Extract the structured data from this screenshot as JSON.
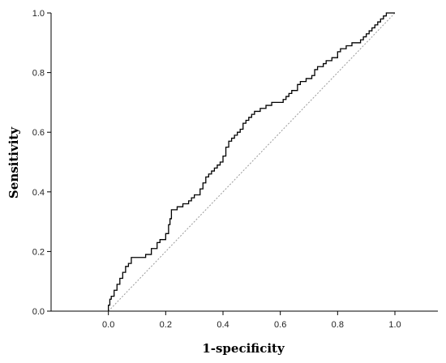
{
  "chart_data": {
    "type": "line",
    "title": "",
    "xlabel": "1-specificity",
    "ylabel": "Sensitivity",
    "xlim": [
      -0.2,
      1.15
    ],
    "ylim": [
      0,
      1.0
    ],
    "x_ticks": [
      "0.0",
      "0.2",
      "0.4",
      "0.6",
      "0.8",
      "1.0"
    ],
    "y_ticks": [
      "0.0",
      "0.2",
      "0.4",
      "0.6",
      "0.8",
      "1.0"
    ],
    "grid": false,
    "legend": "none",
    "reference_line": {
      "from": [
        0,
        0
      ],
      "to": [
        1,
        1
      ],
      "style": "dotted",
      "color": "#999999"
    },
    "series": [
      {
        "color": "#000000",
        "points": [
          [
            0.0,
            0.0
          ],
          [
            0.0,
            0.02
          ],
          [
            0.005,
            0.02
          ],
          [
            0.005,
            0.04
          ],
          [
            0.01,
            0.04
          ],
          [
            0.01,
            0.05
          ],
          [
            0.02,
            0.05
          ],
          [
            0.02,
            0.07
          ],
          [
            0.03,
            0.07
          ],
          [
            0.03,
            0.09
          ],
          [
            0.04,
            0.09
          ],
          [
            0.04,
            0.11
          ],
          [
            0.05,
            0.11
          ],
          [
            0.05,
            0.13
          ],
          [
            0.06,
            0.13
          ],
          [
            0.06,
            0.15
          ],
          [
            0.07,
            0.15
          ],
          [
            0.07,
            0.16
          ],
          [
            0.08,
            0.16
          ],
          [
            0.08,
            0.18
          ],
          [
            0.13,
            0.18
          ],
          [
            0.13,
            0.19
          ],
          [
            0.15,
            0.19
          ],
          [
            0.15,
            0.21
          ],
          [
            0.17,
            0.21
          ],
          [
            0.17,
            0.23
          ],
          [
            0.18,
            0.23
          ],
          [
            0.18,
            0.24
          ],
          [
            0.2,
            0.24
          ],
          [
            0.2,
            0.26
          ],
          [
            0.21,
            0.26
          ],
          [
            0.21,
            0.29
          ],
          [
            0.215,
            0.29
          ],
          [
            0.215,
            0.31
          ],
          [
            0.22,
            0.31
          ],
          [
            0.22,
            0.34
          ],
          [
            0.24,
            0.34
          ],
          [
            0.24,
            0.35
          ],
          [
            0.26,
            0.35
          ],
          [
            0.26,
            0.36
          ],
          [
            0.28,
            0.36
          ],
          [
            0.28,
            0.37
          ],
          [
            0.29,
            0.37
          ],
          [
            0.29,
            0.38
          ],
          [
            0.3,
            0.38
          ],
          [
            0.3,
            0.39
          ],
          [
            0.32,
            0.39
          ],
          [
            0.32,
            0.41
          ],
          [
            0.33,
            0.41
          ],
          [
            0.33,
            0.43
          ],
          [
            0.34,
            0.43
          ],
          [
            0.34,
            0.45
          ],
          [
            0.35,
            0.45
          ],
          [
            0.35,
            0.46
          ],
          [
            0.36,
            0.46
          ],
          [
            0.36,
            0.47
          ],
          [
            0.37,
            0.47
          ],
          [
            0.37,
            0.48
          ],
          [
            0.38,
            0.48
          ],
          [
            0.38,
            0.49
          ],
          [
            0.39,
            0.49
          ],
          [
            0.39,
            0.5
          ],
          [
            0.4,
            0.5
          ],
          [
            0.4,
            0.52
          ],
          [
            0.41,
            0.52
          ],
          [
            0.41,
            0.55
          ],
          [
            0.42,
            0.55
          ],
          [
            0.42,
            0.57
          ],
          [
            0.43,
            0.57
          ],
          [
            0.43,
            0.58
          ],
          [
            0.44,
            0.58
          ],
          [
            0.44,
            0.59
          ],
          [
            0.45,
            0.59
          ],
          [
            0.45,
            0.6
          ],
          [
            0.46,
            0.6
          ],
          [
            0.46,
            0.61
          ],
          [
            0.47,
            0.61
          ],
          [
            0.47,
            0.63
          ],
          [
            0.48,
            0.63
          ],
          [
            0.48,
            0.64
          ],
          [
            0.49,
            0.64
          ],
          [
            0.49,
            0.65
          ],
          [
            0.5,
            0.65
          ],
          [
            0.5,
            0.66
          ],
          [
            0.51,
            0.66
          ],
          [
            0.51,
            0.67
          ],
          [
            0.53,
            0.67
          ],
          [
            0.53,
            0.68
          ],
          [
            0.55,
            0.68
          ],
          [
            0.55,
            0.69
          ],
          [
            0.57,
            0.69
          ],
          [
            0.57,
            0.7
          ],
          [
            0.61,
            0.7
          ],
          [
            0.61,
            0.71
          ],
          [
            0.62,
            0.71
          ],
          [
            0.62,
            0.72
          ],
          [
            0.63,
            0.72
          ],
          [
            0.63,
            0.73
          ],
          [
            0.64,
            0.73
          ],
          [
            0.64,
            0.74
          ],
          [
            0.66,
            0.74
          ],
          [
            0.66,
            0.76
          ],
          [
            0.67,
            0.76
          ],
          [
            0.67,
            0.77
          ],
          [
            0.69,
            0.77
          ],
          [
            0.69,
            0.78
          ],
          [
            0.71,
            0.78
          ],
          [
            0.71,
            0.79
          ],
          [
            0.72,
            0.79
          ],
          [
            0.72,
            0.81
          ],
          [
            0.73,
            0.81
          ],
          [
            0.73,
            0.82
          ],
          [
            0.75,
            0.82
          ],
          [
            0.75,
            0.83
          ],
          [
            0.76,
            0.83
          ],
          [
            0.76,
            0.84
          ],
          [
            0.78,
            0.84
          ],
          [
            0.78,
            0.85
          ],
          [
            0.8,
            0.85
          ],
          [
            0.8,
            0.87
          ],
          [
            0.81,
            0.87
          ],
          [
            0.81,
            0.88
          ],
          [
            0.83,
            0.88
          ],
          [
            0.83,
            0.89
          ],
          [
            0.85,
            0.89
          ],
          [
            0.85,
            0.9
          ],
          [
            0.88,
            0.9
          ],
          [
            0.88,
            0.91
          ],
          [
            0.89,
            0.91
          ],
          [
            0.89,
            0.92
          ],
          [
            0.9,
            0.92
          ],
          [
            0.9,
            0.93
          ],
          [
            0.91,
            0.93
          ],
          [
            0.91,
            0.94
          ],
          [
            0.92,
            0.94
          ],
          [
            0.92,
            0.95
          ],
          [
            0.93,
            0.95
          ],
          [
            0.93,
            0.96
          ],
          [
            0.94,
            0.96
          ],
          [
            0.94,
            0.97
          ],
          [
            0.95,
            0.97
          ],
          [
            0.95,
            0.98
          ],
          [
            0.96,
            0.98
          ],
          [
            0.96,
            0.99
          ],
          [
            0.97,
            0.99
          ],
          [
            0.97,
            1.0
          ],
          [
            1.0,
            1.0
          ]
        ]
      }
    ]
  }
}
